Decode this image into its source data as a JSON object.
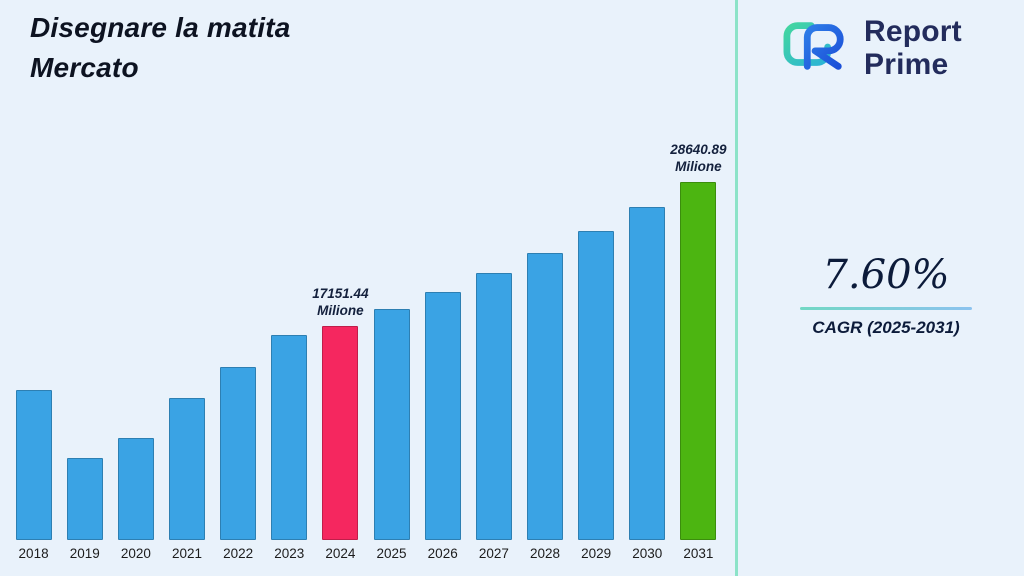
{
  "title": {
    "line1": "Disegnare la matita",
    "line2": "Mercato"
  },
  "logo": {
    "brand_line1": "Report",
    "brand_line2": "Prime"
  },
  "cagr": {
    "value": "7.60%",
    "label": "CAGR (2025-2031)"
  },
  "colors": {
    "background": "#e9f2fb",
    "bar_default": "#3aa3e4",
    "bar_highlight_2024": "#f5275f",
    "bar_highlight_2031": "#4cb511",
    "divider": "#8ce3c8",
    "text_dark": "#0d1321",
    "brand_navy": "#232c5c"
  },
  "chart_data": {
    "type": "bar",
    "title": "Disegnare la matita Mercato",
    "xlabel": "",
    "ylabel": "",
    "unit": "Milione",
    "ylim": [
      0,
      30000
    ],
    "grid": false,
    "legend": false,
    "categories": [
      "2018",
      "2019",
      "2020",
      "2021",
      "2022",
      "2023",
      "2024",
      "2025",
      "2026",
      "2027",
      "2028",
      "2029",
      "2030",
      "2031"
    ],
    "values": [
      12000,
      6600,
      8150,
      11400,
      13850,
      16400,
      17151.44,
      18455.31,
      19857.91,
      21367.11,
      22991.01,
      24738.33,
      26618.44,
      28640.89
    ],
    "bar_colors": [
      "#3aa3e4",
      "#3aa3e4",
      "#3aa3e4",
      "#3aa3e4",
      "#3aa3e4",
      "#3aa3e4",
      "#f5275f",
      "#3aa3e4",
      "#3aa3e4",
      "#3aa3e4",
      "#3aa3e4",
      "#3aa3e4",
      "#3aa3e4",
      "#4cb511"
    ],
    "data_labels": {
      "6": [
        "17151.44",
        "Milione"
      ],
      "13": [
        "28640.89",
        "Milione"
      ]
    }
  }
}
